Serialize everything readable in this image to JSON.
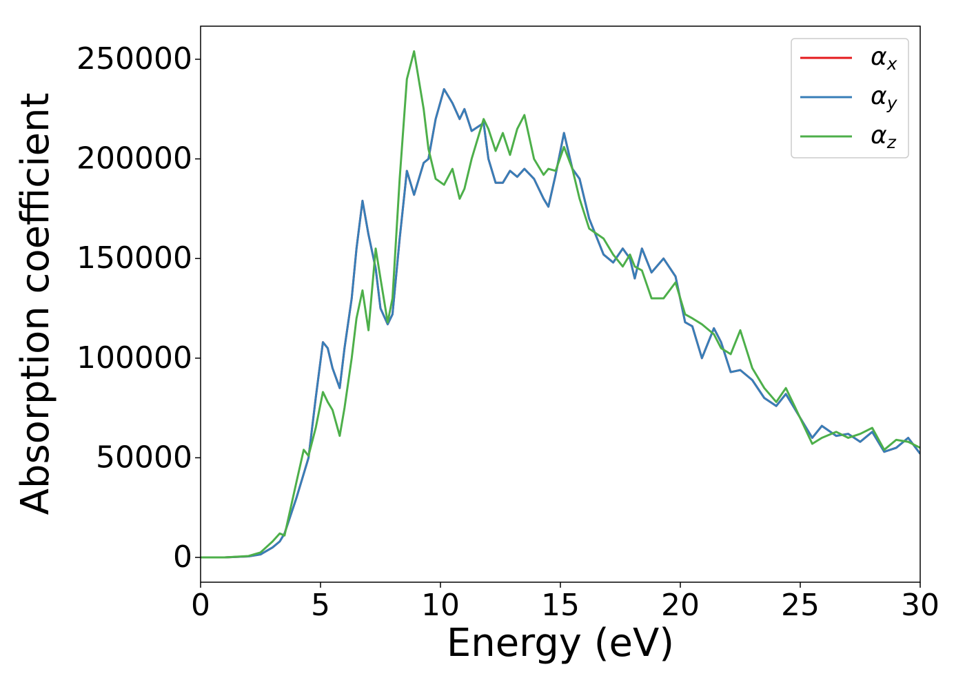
{
  "chart_data": {
    "type": "line",
    "x_label": "Energy (eV)",
    "y_label": "Absorption coefficient",
    "x": [
      0,
      1,
      2,
      2.5,
      3,
      3.3,
      3.5,
      4,
      4.3,
      4.5,
      4.8,
      5.1,
      5.3,
      5.5,
      5.8,
      6,
      6.3,
      6.5,
      6.75,
      7,
      7.3,
      7.5,
      7.8,
      8,
      8.3,
      8.6,
      8.9,
      9.3,
      9.5,
      9.8,
      10.15,
      10.5,
      10.8,
      11,
      11.3,
      11.8,
      12,
      12.3,
      12.6,
      12.9,
      13.2,
      13.5,
      13.9,
      14.3,
      14.5,
      14.8,
      15.15,
      15.5,
      15.8,
      16.2,
      16.8,
      17.2,
      17.6,
      17.9,
      18.1,
      18.4,
      18.8,
      19.3,
      19.8,
      20.2,
      20.5,
      20.9,
      21.4,
      21.7,
      22.1,
      22.5,
      23,
      23.5,
      24,
      24.4,
      24.8,
      25.5,
      25.9,
      26.5,
      27,
      27.5,
      28,
      28.5,
      29,
      29.5,
      30
    ],
    "series": [
      {
        "name": "αx",
        "color": "#e41a1c",
        "values": [
          0,
          0,
          500,
          1500,
          5000,
          8000,
          12000,
          30000,
          42000,
          50000,
          80000,
          108000,
          105000,
          95000,
          85000,
          105000,
          130000,
          155000,
          179000,
          162000,
          145000,
          125000,
          117000,
          122000,
          160000,
          194000,
          182000,
          198000,
          200000,
          220000,
          235000,
          228000,
          220000,
          225000,
          214000,
          218000,
          200000,
          188000,
          188000,
          194000,
          191000,
          195000,
          190000,
          180000,
          176000,
          192000,
          213000,
          195000,
          190000,
          170000,
          152000,
          148000,
          155000,
          150000,
          140000,
          155000,
          143000,
          150000,
          141000,
          118000,
          116000,
          100000,
          115000,
          108000,
          93000,
          94000,
          89000,
          80000,
          76000,
          82000,
          74000,
          60000,
          66000,
          61000,
          62000,
          58000,
          63000,
          53000,
          55000,
          60000,
          52000
        ]
      },
      {
        "name": "αy",
        "color": "#377eb8",
        "values": [
          0,
          0,
          500,
          1500,
          5000,
          8000,
          12000,
          30000,
          42000,
          50000,
          80000,
          108000,
          105000,
          95000,
          85000,
          105000,
          130000,
          155000,
          179000,
          162000,
          145000,
          125000,
          117000,
          122000,
          160000,
          194000,
          182000,
          198000,
          200000,
          220000,
          235000,
          228000,
          220000,
          225000,
          214000,
          218000,
          200000,
          188000,
          188000,
          194000,
          191000,
          195000,
          190000,
          180000,
          176000,
          192000,
          213000,
          195000,
          190000,
          170000,
          152000,
          148000,
          155000,
          150000,
          140000,
          155000,
          143000,
          150000,
          141000,
          118000,
          116000,
          100000,
          115000,
          108000,
          93000,
          94000,
          89000,
          80000,
          76000,
          82000,
          74000,
          60000,
          66000,
          61000,
          62000,
          58000,
          63000,
          53000,
          55000,
          60000,
          52000
        ]
      },
      {
        "name": "αz",
        "color": "#4daf4a",
        "values": [
          0,
          0,
          700,
          2500,
          8000,
          12000,
          11000,
          38000,
          54000,
          51000,
          65000,
          83000,
          78000,
          74000,
          61000,
          75000,
          100000,
          120000,
          134000,
          114000,
          155000,
          140000,
          118000,
          130000,
          190000,
          240000,
          254000,
          225000,
          205000,
          190000,
          187000,
          195000,
          180000,
          185000,
          200000,
          220000,
          215000,
          204000,
          213000,
          202000,
          215000,
          222000,
          200000,
          192000,
          195000,
          194000,
          206000,
          195000,
          180000,
          165000,
          160000,
          152000,
          146000,
          152000,
          146000,
          144000,
          130000,
          130000,
          138000,
          122000,
          120000,
          117000,
          112000,
          105000,
          102000,
          114000,
          95000,
          85000,
          78000,
          85000,
          75000,
          57000,
          60000,
          63000,
          60000,
          62000,
          65000,
          54000,
          59000,
          58000,
          55000
        ]
      }
    ],
    "xlim": [
      0,
      30
    ],
    "xticks": [
      0,
      5,
      10,
      15,
      20,
      25,
      30
    ],
    "ylim": [
      -12450,
      266600
    ],
    "yticks": [
      0,
      50000,
      100000,
      150000,
      200000,
      250000
    ],
    "grid": false,
    "legend": "upper right"
  }
}
